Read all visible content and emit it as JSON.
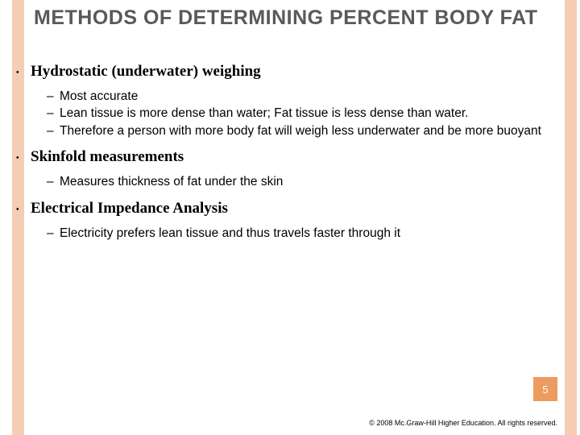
{
  "colors": {
    "rail": "#f5ccb4",
    "badge": "#ed9c5f",
    "title": "#595959",
    "text": "#000000",
    "background": "#ffffff"
  },
  "title": "METHODS OF DETERMINING PERCENT BODY FAT",
  "sections": [
    {
      "heading": "Hydrostatic (underwater) weighing",
      "points": [
        "Most accurate",
        "Lean tissue is more dense than water; Fat tissue is less dense than water.",
        "Therefore a person with more body fat will weigh less underwater and be more buoyant"
      ]
    },
    {
      "heading": "Skinfold measurements",
      "points": [
        "Measures thickness of fat under the skin"
      ]
    },
    {
      "heading": "Electrical Impedance Analysis",
      "points": [
        "Electricity prefers lean tissue and thus travels faster through it"
      ]
    }
  ],
  "page_number": "5",
  "copyright": "© 2008 Mc.Graw-Hill Higher Education. All rights reserved."
}
